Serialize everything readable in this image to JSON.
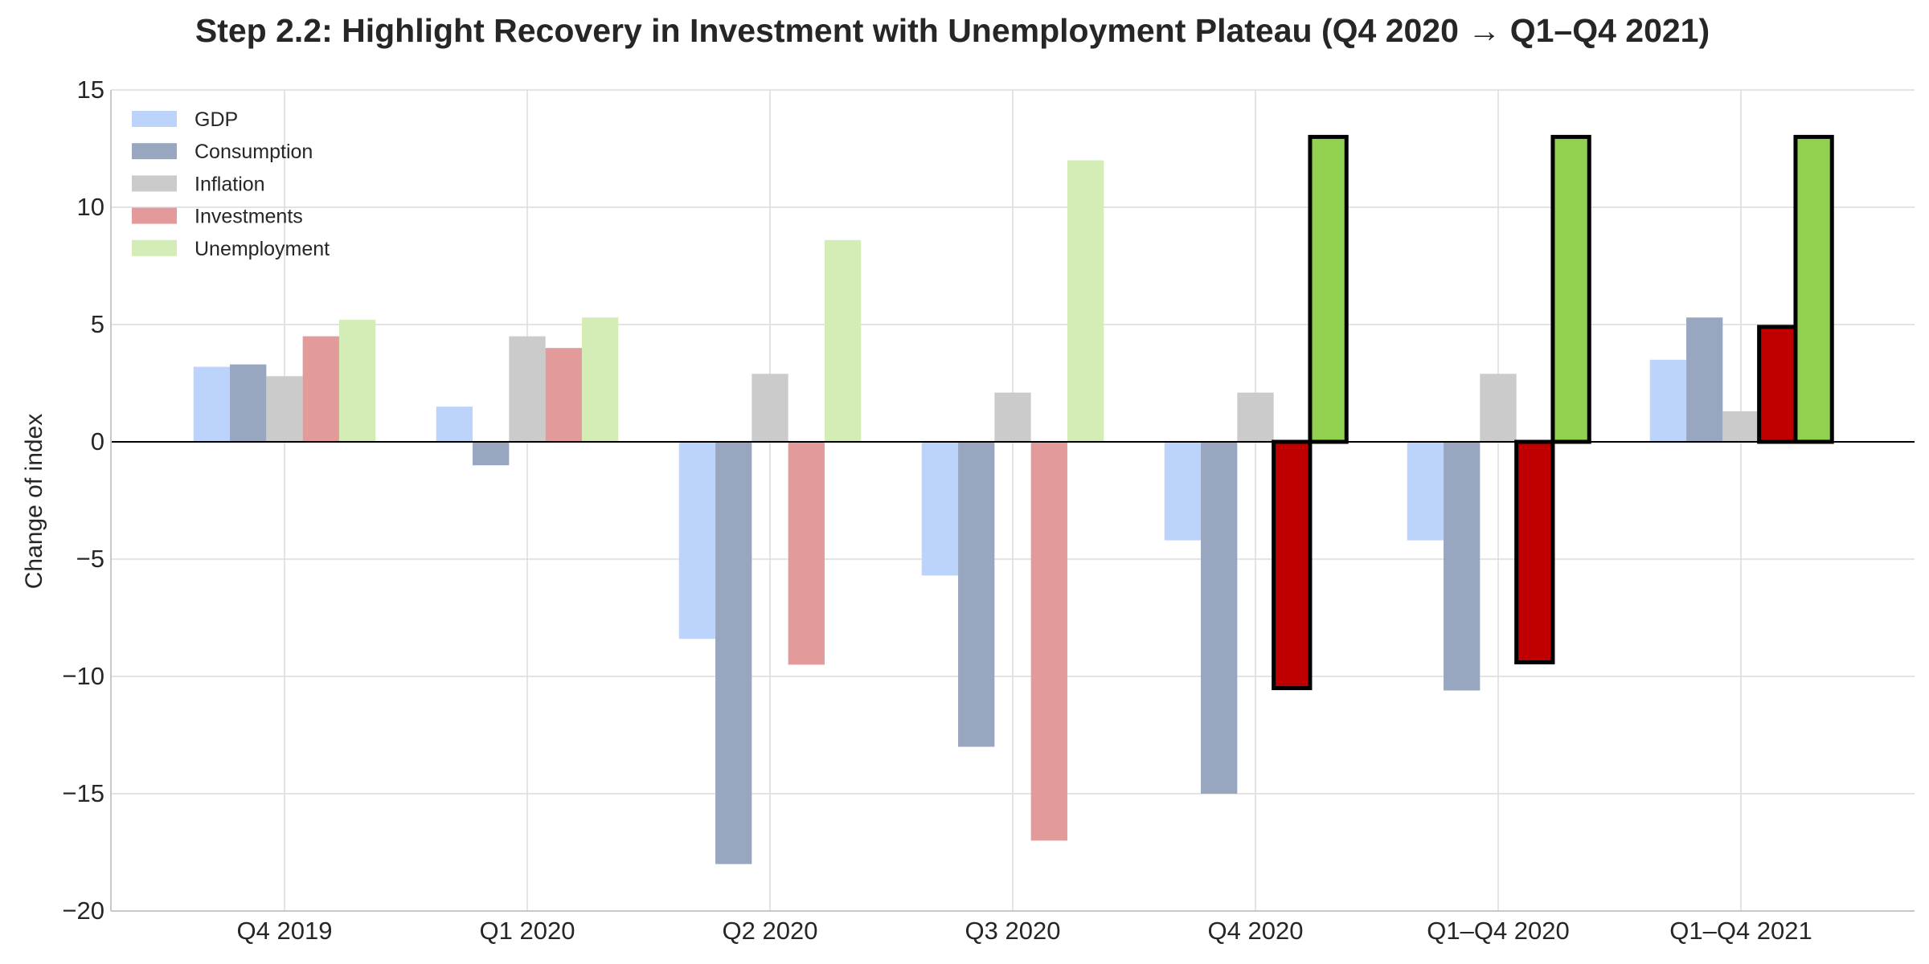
{
  "chart_data": {
    "type": "bar",
    "title": "Step 2.2: Highlight Recovery in Investment with Unemployment Plateau (Q4 2020 → Q1–Q4 2021)",
    "xlabel": "",
    "ylabel": "Change of index",
    "ylim": [
      -20,
      15
    ],
    "yticks": [
      15,
      10,
      5,
      0,
      -5,
      -10,
      -15,
      -20
    ],
    "ytick_labels": [
      "15",
      "10",
      "5",
      "0",
      "−5",
      "−10",
      "−15",
      "−20"
    ],
    "grid": true,
    "legend_position": "top-left",
    "categories": [
      "Q4 2019",
      "Q1 2020",
      "Q2 2020",
      "Q3 2020",
      "Q4 2020",
      "Q1–Q4 2020",
      "Q1–Q4 2021"
    ],
    "series": [
      {
        "name": "GDP",
        "color": "#bcd4fb",
        "values": [
          3.2,
          1.5,
          -8.4,
          -5.7,
          -4.2,
          -4.2,
          3.5
        ]
      },
      {
        "name": "Consumption",
        "color": "#98a6c0",
        "values": [
          3.3,
          -1.0,
          -18.0,
          -13.0,
          -15.0,
          -10.6,
          5.3
        ]
      },
      {
        "name": "Inflation",
        "color": "#cbcbcb",
        "values": [
          2.8,
          4.5,
          2.9,
          2.1,
          2.1,
          2.9,
          1.3
        ]
      },
      {
        "name": "Investments",
        "color": "#e39a9b",
        "values": [
          4.5,
          4.0,
          -9.5,
          -17.0,
          -10.5,
          -9.4,
          4.9
        ]
      },
      {
        "name": "Unemployment",
        "color": "#d4ecb6",
        "values": [
          5.2,
          5.3,
          8.6,
          12.0,
          13.0,
          13.0,
          13.0
        ]
      }
    ],
    "highlight": {
      "categories": [
        "Q4 2020",
        "Q1–Q4 2020",
        "Q1–Q4 2021"
      ],
      "series": [
        "Investments",
        "Unemployment"
      ],
      "colors": {
        "Investments": "#c00000",
        "Unemployment": "#92d050"
      },
      "outline": "#000000"
    }
  }
}
